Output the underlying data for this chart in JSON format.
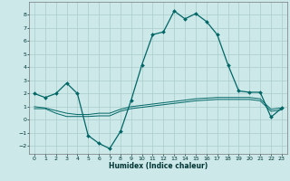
{
  "xlabel": "Humidex (Indice chaleur)",
  "background_color": "#cce8e8",
  "grid_color": "#aacccc",
  "line_color": "#006666",
  "x_values": [
    0,
    1,
    2,
    3,
    4,
    5,
    6,
    7,
    8,
    9,
    10,
    11,
    12,
    13,
    14,
    15,
    16,
    17,
    18,
    19,
    20,
    21,
    22,
    23
  ],
  "main_curve": [
    2.0,
    1.7,
    2.0,
    2.8,
    2.0,
    -1.2,
    -1.8,
    -2.2,
    -0.9,
    1.5,
    4.2,
    6.5,
    6.7,
    8.3,
    7.7,
    8.1,
    7.5,
    6.5,
    4.2,
    2.2,
    2.1,
    2.1,
    0.2,
    0.9
  ],
  "flat_line1": [
    1.0,
    0.9,
    0.7,
    0.5,
    0.4,
    0.4,
    0.5,
    0.5,
    0.8,
    1.0,
    1.1,
    1.2,
    1.3,
    1.4,
    1.5,
    1.6,
    1.65,
    1.7,
    1.7,
    1.7,
    1.7,
    1.6,
    0.8,
    0.9
  ],
  "flat_line2": [
    0.85,
    0.85,
    0.5,
    0.25,
    0.25,
    0.25,
    0.3,
    0.3,
    0.65,
    0.85,
    0.95,
    1.05,
    1.15,
    1.25,
    1.35,
    1.45,
    1.5,
    1.55,
    1.55,
    1.55,
    1.55,
    1.45,
    0.65,
    0.75
  ],
  "ylim": [
    -2.6,
    9.0
  ],
  "xlim": [
    -0.5,
    23.5
  ],
  "yticks": [
    -2,
    -1,
    0,
    1,
    2,
    3,
    4,
    5,
    6,
    7,
    8
  ],
  "xticks": [
    0,
    1,
    2,
    3,
    4,
    5,
    6,
    7,
    8,
    9,
    10,
    11,
    12,
    13,
    14,
    15,
    16,
    17,
    18,
    19,
    20,
    21,
    22,
    23
  ]
}
